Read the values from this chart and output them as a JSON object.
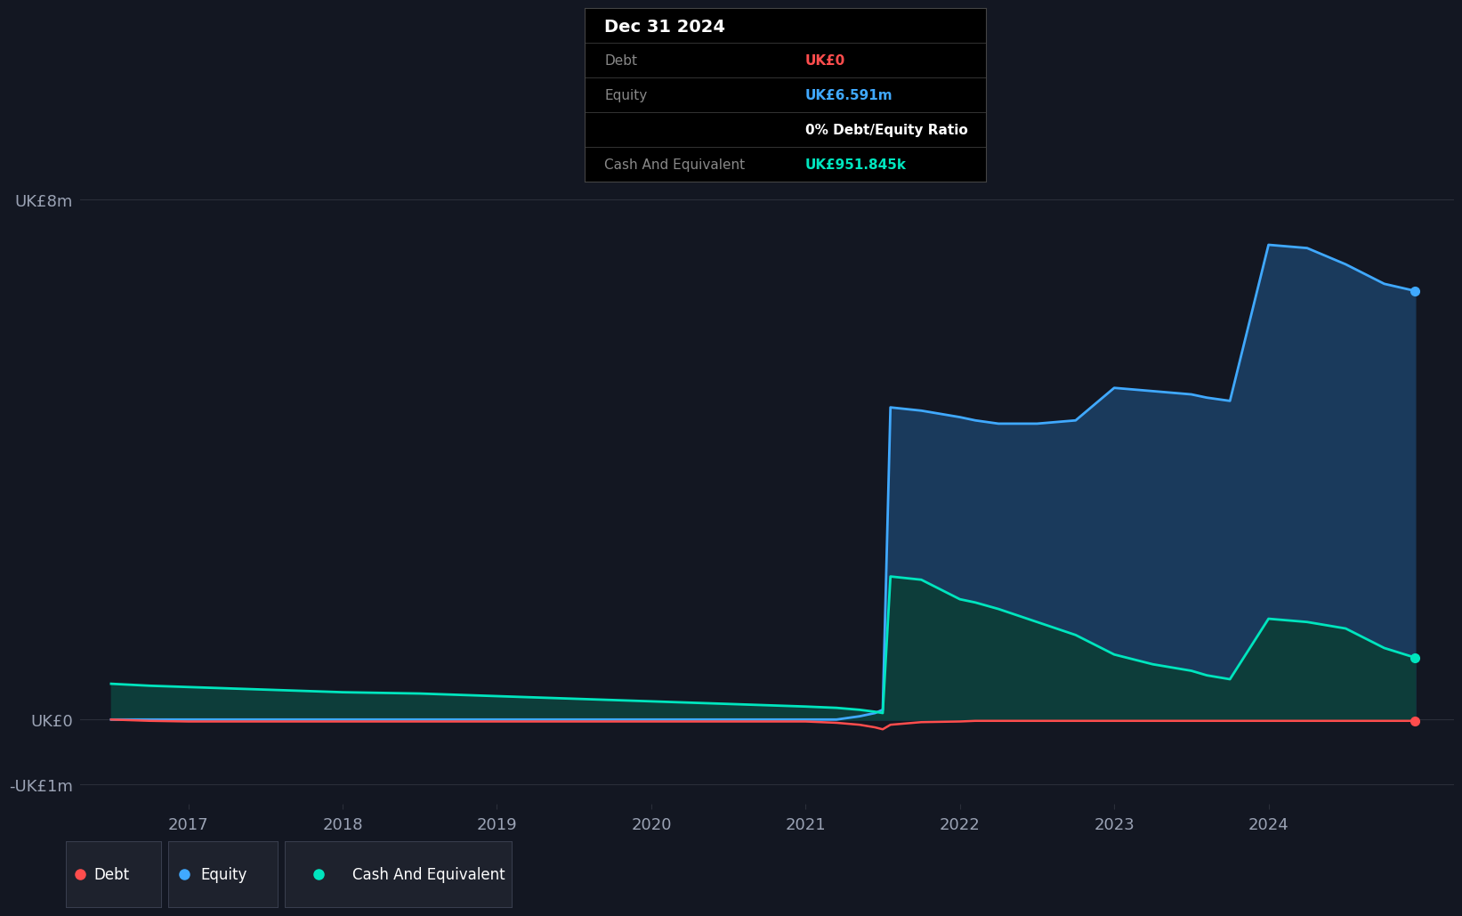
{
  "bg_color": "#131722",
  "plot_bg_color": "#131722",
  "grid_color": "#2a2e39",
  "debt_color": "#ff4d4d",
  "equity_color": "#40a9ff",
  "cash_color": "#00e5be",
  "equity_fill_color": "#1a3a5c",
  "cash_fill_color": "#0d3d3a",
  "legend_bg": "#1e222d",
  "years_x": [
    2016.5,
    2016.75,
    2017.0,
    2017.25,
    2017.5,
    2017.75,
    2018.0,
    2018.25,
    2018.5,
    2018.75,
    2019.0,
    2019.25,
    2019.5,
    2019.75,
    2020.0,
    2020.25,
    2020.5,
    2020.75,
    2021.0,
    2021.2,
    2021.35,
    2021.45,
    2021.5,
    2021.55,
    2021.75,
    2022.0,
    2022.1,
    2022.25,
    2022.5,
    2022.75,
    2023.0,
    2023.25,
    2023.5,
    2023.6,
    2023.75,
    2024.0,
    2024.25,
    2024.5,
    2024.75,
    2024.95
  ],
  "debt_y": [
    0.0,
    -0.02,
    -0.03,
    -0.03,
    -0.03,
    -0.03,
    -0.03,
    -0.03,
    -0.03,
    -0.03,
    -0.03,
    -0.03,
    -0.03,
    -0.03,
    -0.03,
    -0.03,
    -0.03,
    -0.03,
    -0.03,
    -0.05,
    -0.08,
    -0.12,
    -0.15,
    -0.08,
    -0.04,
    -0.03,
    -0.02,
    -0.02,
    -0.02,
    -0.02,
    -0.02,
    -0.02,
    -0.02,
    -0.02,
    -0.02,
    -0.02,
    -0.02,
    -0.02,
    -0.02,
    -0.02
  ],
  "equity_y": [
    0.0,
    0.0,
    0.0,
    0.0,
    0.0,
    0.0,
    0.0,
    0.0,
    0.0,
    0.0,
    0.0,
    0.0,
    0.0,
    0.0,
    0.0,
    0.0,
    0.0,
    0.0,
    0.0,
    0.0,
    0.05,
    0.1,
    0.15,
    4.8,
    4.75,
    4.65,
    4.6,
    4.55,
    4.55,
    4.6,
    5.1,
    5.05,
    5.0,
    4.95,
    4.9,
    7.3,
    7.25,
    7.0,
    6.7,
    6.591
  ],
  "cash_y": [
    0.55,
    0.52,
    0.5,
    0.48,
    0.46,
    0.44,
    0.42,
    0.41,
    0.4,
    0.38,
    0.36,
    0.34,
    0.32,
    0.3,
    0.28,
    0.26,
    0.24,
    0.22,
    0.2,
    0.18,
    0.15,
    0.12,
    0.1,
    2.2,
    2.15,
    1.85,
    1.8,
    1.7,
    1.5,
    1.3,
    1.0,
    0.85,
    0.75,
    0.68,
    0.62,
    1.55,
    1.5,
    1.4,
    1.1,
    0.952
  ],
  "xlim": [
    2016.3,
    2025.2
  ],
  "ylim": [
    -1.3,
    9.5
  ],
  "ytick_vals": [
    -1.0,
    0.0,
    8.0
  ],
  "ytick_labels": [
    "-UK£1m",
    "UK£0",
    "UK£8m"
  ],
  "xtick_positions": [
    2017,
    2018,
    2019,
    2020,
    2021,
    2022,
    2023,
    2024
  ],
  "xtick_labels": [
    "2017",
    "2018",
    "2019",
    "2020",
    "2021",
    "2022",
    "2023",
    "2024"
  ],
  "tooltip_date": "Dec 31 2024",
  "tooltip_debt_label": "Debt",
  "tooltip_debt_value": "UK£0",
  "tooltip_equity_label": "Equity",
  "tooltip_equity_value": "UK£6.591m",
  "tooltip_ratio": "0% Debt/Equity Ratio",
  "tooltip_cash_label": "Cash And Equivalent",
  "tooltip_cash_value": "UK£951.845k"
}
